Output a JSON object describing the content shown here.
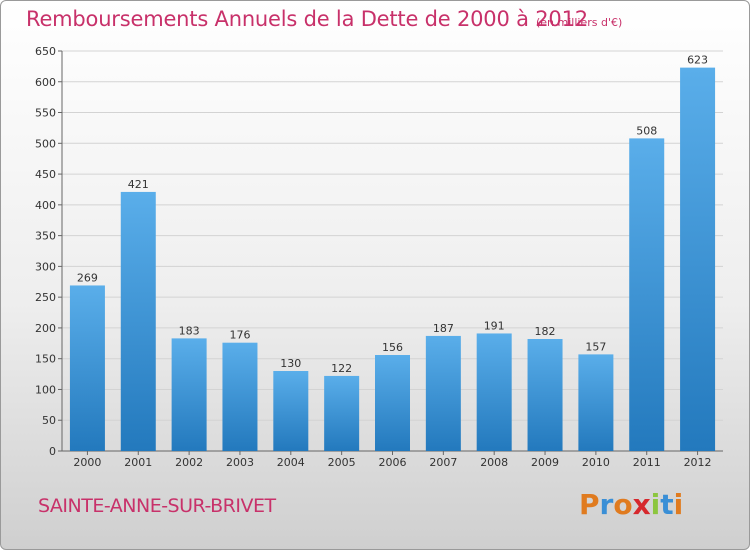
{
  "header": {
    "title": "Remboursements Annuels de la Dette de 2000 à 2012",
    "unit": "(en milliers d'€)"
  },
  "footer": {
    "commune": "SAINTE-ANNE-SUR-BRIVET",
    "brand_letters": [
      "P",
      "r",
      "o",
      "x",
      "i",
      "t",
      "i"
    ],
    "brand_colors": [
      "#e07b1f",
      "#3a8fd6",
      "#e07b1f",
      "#d6282d",
      "#8cc63f",
      "#3a8fd6",
      "#e07b1f"
    ]
  },
  "colors": {
    "bar_light": "#5aaeea",
    "bar_dark": "#2379bd",
    "title": "#c8316a",
    "grid": "#d3d3d3"
  },
  "chart_data": {
    "type": "bar",
    "title": "Remboursements Annuels de la Dette de 2000 à 2012",
    "subtitle": "(en milliers d'€)",
    "categories": [
      "2000",
      "2001",
      "2002",
      "2003",
      "2004",
      "2005",
      "2006",
      "2007",
      "2008",
      "2009",
      "2010",
      "2011",
      "2012"
    ],
    "values": [
      269,
      421,
      183,
      176,
      130,
      122,
      156,
      187,
      191,
      182,
      157,
      508,
      623
    ],
    "ylim": [
      0,
      650
    ],
    "yticks": [
      0,
      50,
      100,
      150,
      200,
      250,
      300,
      350,
      400,
      450,
      500,
      550,
      600,
      650
    ],
    "grid": true,
    "legend": "none"
  }
}
